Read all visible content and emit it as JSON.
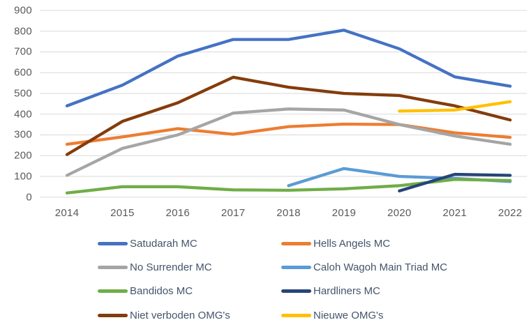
{
  "chart_data": {
    "type": "line",
    "title": "",
    "xlabel": "",
    "ylabel": "",
    "x": [
      "2014",
      "2015",
      "2016",
      "2017",
      "2018",
      "2019",
      "2020",
      "2021",
      "2022"
    ],
    "ylim": [
      0,
      900
    ],
    "yticks": [
      900,
      800,
      700,
      600,
      500,
      400,
      300,
      200,
      100,
      0
    ],
    "grid": "horizontal",
    "gridline_color": "#D9D9D9",
    "axis_label_color": "#595959",
    "legend_position": "bottom",
    "legend_columns": 2,
    "legend_text_color": "#44546A",
    "series": [
      {
        "name": "Satudarah MC",
        "color": "#4472C4",
        "values": [
          440,
          540,
          680,
          760,
          760,
          805,
          715,
          580,
          535
        ]
      },
      {
        "name": "Hells Angels MC",
        "color": "#ED7D31",
        "values": [
          255,
          290,
          330,
          303,
          340,
          352,
          350,
          310,
          288
        ]
      },
      {
        "name": "No Surrender MC",
        "color": "#A5A5A5",
        "values": [
          105,
          235,
          300,
          405,
          425,
          420,
          350,
          295,
          255
        ]
      },
      {
        "name": "Caloh Wagoh Main Triad MC",
        "color": "#5B9BD5",
        "values": [
          null,
          null,
          null,
          null,
          55,
          138,
          100,
          90,
          75
        ]
      },
      {
        "name": "Bandidos MC",
        "color": "#70AD47",
        "values": [
          20,
          50,
          50,
          35,
          33,
          40,
          55,
          85,
          80
        ]
      },
      {
        "name": "Hardliners MC",
        "color": "#264478",
        "values": [
          null,
          null,
          null,
          null,
          null,
          null,
          30,
          110,
          105
        ]
      },
      {
        "name": "Niet verboden OMG's",
        "color": "#843C0C",
        "values": [
          205,
          365,
          455,
          578,
          530,
          500,
          490,
          440,
          372
        ]
      },
      {
        "name": "Nieuwe OMG's",
        "color": "#FFC000",
        "values": [
          null,
          null,
          null,
          null,
          null,
          null,
          415,
          420,
          460
        ]
      }
    ]
  }
}
